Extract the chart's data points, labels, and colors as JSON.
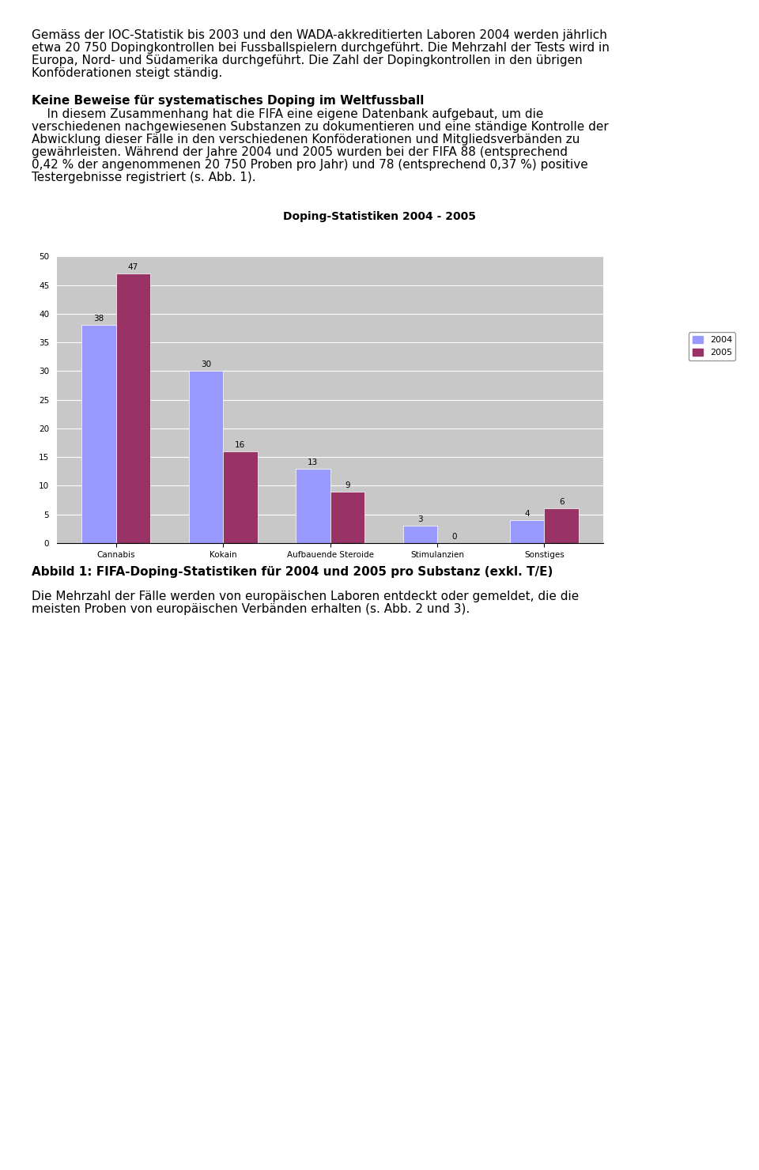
{
  "title": "Doping-Statistiken 2004 - 2005",
  "categories": [
    "Cannabis",
    "Kokain",
    "Aufbauende Steroide",
    "Stimulanzien",
    "Sonstiges"
  ],
  "values_2004": [
    38,
    30,
    13,
    3,
    4
  ],
  "values_2005": [
    47,
    16,
    9,
    0,
    6
  ],
  "color_2004": "#9999ff",
  "color_2005": "#993366",
  "legend_2004": "2004",
  "legend_2005": "2005",
  "ylim": [
    0,
    50
  ],
  "yticks": [
    0,
    5,
    10,
    15,
    20,
    25,
    30,
    35,
    40,
    45,
    50
  ],
  "plot_area_bg": "#c8c8c8",
  "figure_bg": "#ffffff",
  "title_fontsize": 9,
  "bar_label_fontsize": 7.5,
  "tick_fontsize": 7.5,
  "legend_fontsize": 8,
  "text_fontsize": 11,
  "heading_text": "Keine Beweise für systematisches Doping im Weltfussball",
  "para1_lines": [
    "Gemäss der IOC-Statistik bis 2003 und den WADA-akkreditierten Laboren 2004 werden jährlich",
    "etwa 20 750 Dopingkontrollen bei Fussballspielern durchgeführt. Die Mehrzahl der Tests wird in",
    "Europa, Nord- und Südamerika durchgeführt. Die Zahl der Dopingkontrollen in den übrigen",
    "Konföderationen steigt ständig."
  ],
  "body_lines": [
    "    In diesem Zusammenhang hat die FIFA eine eigene Datenbank aufgebaut, um die",
    "verschiedenen nachgewiesenen Substanzen zu dokumentieren und eine ständige Kontrolle der",
    "Abwicklung dieser Fälle in den verschiedenen Konföderationen und Mitgliedsverbänden zu",
    "gewährleisten. Während der Jahre 2004 und 2005 wurden bei der FIFA 88 (entsprechend",
    "0,42 % der angenommenen 20 750 Proben pro Jahr) und 78 (entsprechend 0,37 %) positive",
    "Testergebnisse registriert (s. Abb. 1)."
  ],
  "caption_bold": "Abbild 1: FIFA-Doping-Statistiken für 2004 und 2005 pro Substanz (exkl. T/E)",
  "caption_after_lines": [
    "Die Mehrzahl der Fälle werden von europäischen Laboren entdeckt oder gemeldet, die die",
    "meisten Proben von europäischen Verbänden erhalten (s. Abb. 2 und 3)."
  ]
}
